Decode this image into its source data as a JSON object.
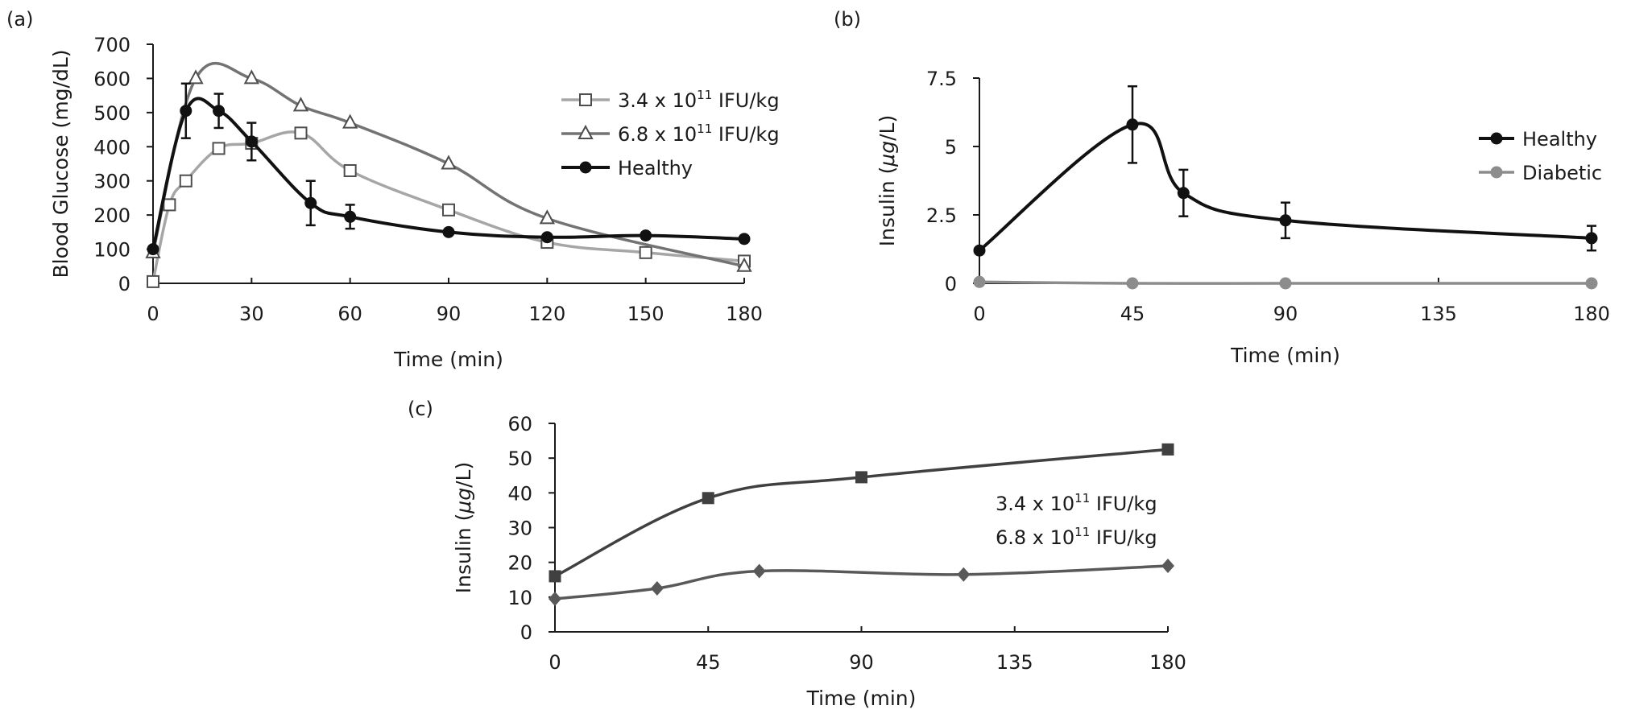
{
  "chart_data": [
    {
      "panel": "(a)",
      "type": "line",
      "xlabel": "Time (min)",
      "ylabel": "Blood Glucose (mg/dL)",
      "xlim": [
        0,
        180
      ],
      "ylim": [
        0,
        700
      ],
      "xticks": [
        "0",
        "30",
        "60",
        "90",
        "120",
        "150",
        "180"
      ],
      "yticks": [
        "0",
        "100",
        "200",
        "300",
        "400",
        "500",
        "600",
        "700"
      ],
      "grid": false,
      "legend_position": "top-right",
      "series": [
        {
          "name": "3.4 x 10",
          "name_sup": "11",
          "name_suffix": " IFU/kg",
          "marker": "square-open",
          "color": "#a6a6a6",
          "x": [
            0,
            5,
            10,
            20,
            30,
            45,
            60,
            90,
            120,
            150,
            180
          ],
          "y": [
            5,
            230,
            300,
            395,
            410,
            440,
            330,
            215,
            120,
            90,
            65
          ]
        },
        {
          "name": "6.8 x 10",
          "name_sup": "11",
          "name_suffix": " IFU/kg",
          "marker": "triangle-open",
          "color": "#737373",
          "x": [
            0,
            13,
            30,
            45,
            60,
            90,
            120,
            180
          ],
          "y": [
            90,
            600,
            600,
            520,
            470,
            350,
            190,
            50
          ]
        },
        {
          "name": "Healthy",
          "marker": "circle-filled",
          "color": "#111111",
          "x": [
            0,
            10,
            20,
            30,
            48,
            60,
            90,
            120,
            150,
            180
          ],
          "y": [
            100,
            505,
            505,
            415,
            235,
            195,
            150,
            135,
            140,
            130
          ],
          "error": [
            0,
            80,
            50,
            55,
            65,
            35,
            0,
            0,
            0,
            0
          ]
        }
      ]
    },
    {
      "panel": "(b)",
      "type": "line",
      "xlabel": "Time (min)",
      "ylabel": "Insulin (μg/L)",
      "ylabel_parts": [
        "Insulin (",
        "μg",
        "/L)"
      ],
      "xlim": [
        0,
        180
      ],
      "ylim": [
        0,
        7.5
      ],
      "xticks": [
        "0",
        "45",
        "90",
        "135",
        "180"
      ],
      "yticks": [
        "0",
        "2.5",
        "5",
        "7.5"
      ],
      "grid": false,
      "legend_position": "right",
      "series": [
        {
          "name": "Healthy",
          "marker": "circle-filled",
          "color": "#111111",
          "x": [
            0,
            45,
            60,
            90,
            180
          ],
          "y": [
            1.2,
            5.8,
            3.3,
            2.3,
            1.65
          ],
          "error": [
            0,
            1.4,
            0.85,
            0.65,
            0.45
          ]
        },
        {
          "name": "Diabetic",
          "marker": "circle-filled",
          "color": "#8c8c8c",
          "x": [
            0,
            45,
            90,
            180
          ],
          "y": [
            0.05,
            0.0,
            0.0,
            0.0
          ]
        }
      ]
    },
    {
      "panel": "(c)",
      "type": "line",
      "xlabel": "Time (min)",
      "ylabel": "Insulin (μg/L)",
      "ylabel_parts": [
        "Insulin (",
        "μg",
        "/L)"
      ],
      "xlim": [
        0,
        180
      ],
      "ylim": [
        0,
        60
      ],
      "xticks": [
        "0",
        "45",
        "90",
        "135",
        "180"
      ],
      "yticks": [
        "0",
        "10",
        "20",
        "30",
        "40",
        "50",
        "60"
      ],
      "grid": false,
      "legend_position": "right",
      "series": [
        {
          "name": "3.4 x 10",
          "name_sup": "11",
          "name_suffix": " IFU/kg",
          "marker": "square-filled",
          "color": "#404040",
          "x": [
            0,
            45,
            90,
            180
          ],
          "y": [
            16,
            38.5,
            44.5,
            52.5
          ]
        },
        {
          "name": "6.8 x 10",
          "name_sup": "11",
          "name_suffix": " IFU/kg",
          "marker": "diamond-filled",
          "color": "#595959",
          "x": [
            0,
            30,
            60,
            120,
            180
          ],
          "y": [
            9.5,
            12.5,
            17.5,
            16.5,
            19
          ]
        }
      ]
    }
  ]
}
